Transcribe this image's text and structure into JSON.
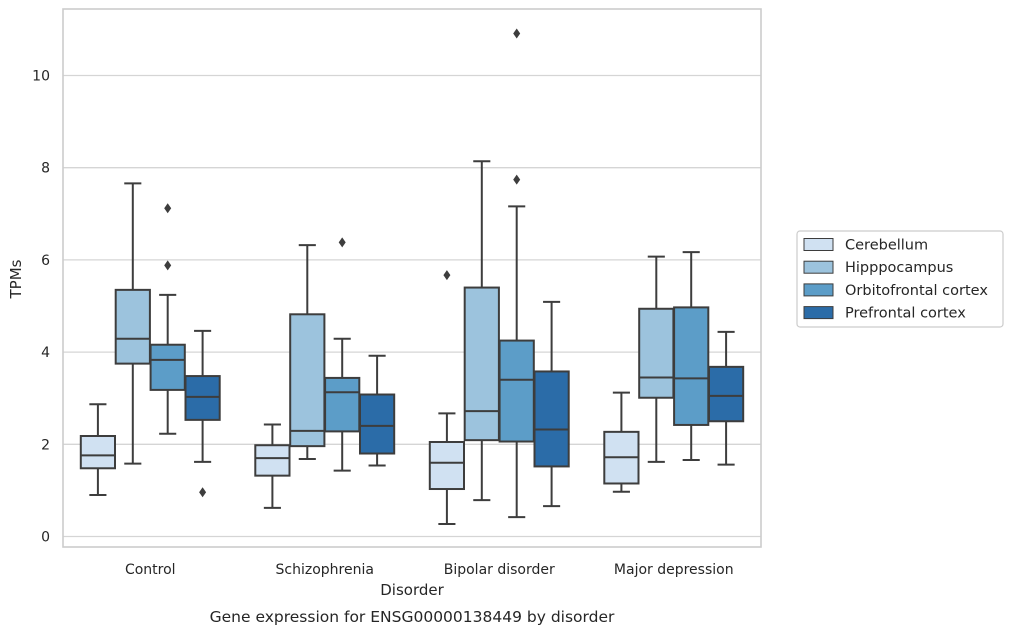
{
  "chart_data": {
    "type": "box",
    "caption": "Gene expression for ENSG00000138449 by disorder",
    "xlabel": "Disorder",
    "ylabel": "TPMs",
    "ylim": [
      -0.25,
      11.5
    ],
    "yticks": [
      0,
      2,
      4,
      6,
      8,
      10
    ],
    "grid": "horizontal",
    "legend_position": "right",
    "categories": [
      "Control",
      "Schizophrenia",
      "Bipolar disorder",
      "Major depression"
    ],
    "series": [
      {
        "name": "Cerebellum",
        "color": "#d0e1f2",
        "boxes": [
          {
            "whislo": 0.9,
            "q1": 1.48,
            "med": 1.76,
            "q3": 2.18,
            "whishi": 2.87,
            "fliers": []
          },
          {
            "whislo": 0.62,
            "q1": 1.32,
            "med": 1.7,
            "q3": 1.98,
            "whishi": 2.43,
            "fliers": []
          },
          {
            "whislo": 0.27,
            "q1": 1.03,
            "med": 1.6,
            "q3": 2.05,
            "whishi": 2.67,
            "fliers": [
              5.67
            ]
          },
          {
            "whislo": 0.97,
            "q1": 1.15,
            "med": 1.72,
            "q3": 2.27,
            "whishi": 3.12,
            "fliers": []
          }
        ]
      },
      {
        "name": "Hipppocampus",
        "color": "#9cc3dd",
        "boxes": [
          {
            "whislo": 1.58,
            "q1": 3.75,
            "med": 4.29,
            "q3": 5.35,
            "whishi": 7.66,
            "fliers": []
          },
          {
            "whislo": 1.68,
            "q1": 1.96,
            "med": 2.29,
            "q3": 4.82,
            "whishi": 6.32,
            "fliers": []
          },
          {
            "whislo": 0.79,
            "q1": 2.09,
            "med": 2.72,
            "q3": 5.4,
            "whishi": 8.14,
            "fliers": []
          },
          {
            "whislo": 1.62,
            "q1": 3.01,
            "med": 3.45,
            "q3": 4.94,
            "whishi": 6.07,
            "fliers": []
          }
        ]
      },
      {
        "name": "Orbitofrontal cortex",
        "color": "#5c9dc8",
        "boxes": [
          {
            "whislo": 2.23,
            "q1": 3.18,
            "med": 3.83,
            "q3": 4.16,
            "whishi": 5.24,
            "fliers": [
              7.12,
              5.88
            ]
          },
          {
            "whislo": 1.43,
            "q1": 2.28,
            "med": 3.13,
            "q3": 3.44,
            "whishi": 4.29,
            "fliers": [
              6.38
            ]
          },
          {
            "whislo": 0.42,
            "q1": 2.06,
            "med": 3.4,
            "q3": 4.25,
            "whishi": 7.16,
            "fliers": [
              10.91,
              7.74
            ]
          },
          {
            "whislo": 1.66,
            "q1": 2.42,
            "med": 3.43,
            "q3": 4.97,
            "whishi": 6.17,
            "fliers": []
          }
        ]
      },
      {
        "name": "Prefrontal cortex",
        "color": "#2b6ca8",
        "boxes": [
          {
            "whislo": 1.62,
            "q1": 2.53,
            "med": 3.03,
            "q3": 3.48,
            "whishi": 4.46,
            "fliers": [
              0.96
            ]
          },
          {
            "whislo": 1.54,
            "q1": 1.8,
            "med": 2.4,
            "q3": 3.08,
            "whishi": 3.92,
            "fliers": []
          },
          {
            "whislo": 0.66,
            "q1": 1.52,
            "med": 2.32,
            "q3": 3.58,
            "whishi": 5.09,
            "fliers": []
          },
          {
            "whislo": 1.56,
            "q1": 2.5,
            "med": 3.05,
            "q3": 3.68,
            "whishi": 4.44,
            "fliers": []
          }
        ]
      }
    ]
  },
  "style": {
    "grid_color": "#d5d5d5",
    "frame_color": "#cccccc",
    "line_color": "#3d3d3d",
    "text_color": "#262626"
  }
}
